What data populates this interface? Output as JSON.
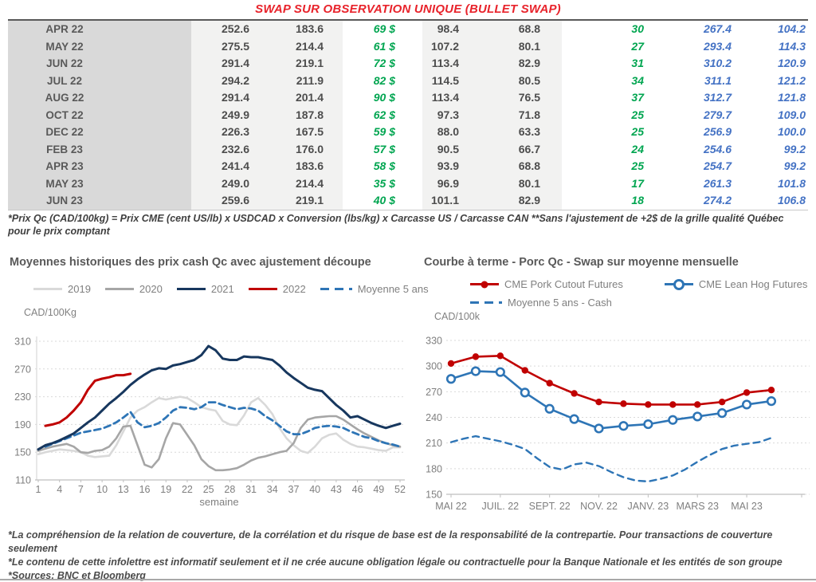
{
  "page": {
    "title": "SWAP SUR OBSERVATION UNIQUE (BULLET SWAP)"
  },
  "colors": {
    "title_red": "#e8232b",
    "green": "#00a550",
    "blue": "#4472c4",
    "navy": "#17375e",
    "dark_red": "#c00000",
    "steel_blue": "#2e75b6",
    "gray_2019": "#d9d9d9",
    "gray_2020": "#a6a6a6",
    "row_month_bg": "#d9d9d9",
    "row_value_bg": "#f2f2f1",
    "axis_text": "#7f7f7f",
    "gridline": "#d9d9d9",
    "axis_line": "#bfbfbf"
  },
  "table": {
    "rows": [
      [
        "APR 22",
        "252.6",
        "183.6",
        "69 $",
        "98.4",
        "68.8",
        "30",
        "267.4",
        "104.2"
      ],
      [
        "MAY 22",
        "275.5",
        "214.4",
        "61 $",
        "107.2",
        "80.1",
        "27",
        "293.4",
        "114.3"
      ],
      [
        "JUN 22",
        "291.4",
        "219.1",
        "72 $",
        "113.4",
        "82.9",
        "31",
        "310.2",
        "120.9"
      ],
      [
        "JUL 22",
        "294.2",
        "211.9",
        "82 $",
        "114.5",
        "80.5",
        "34",
        "311.1",
        "121.2"
      ],
      [
        "AUG 22",
        "291.4",
        "201.4",
        "90 $",
        "113.4",
        "76.5",
        "37",
        "312.7",
        "121.8"
      ],
      [
        "OCT 22",
        "249.9",
        "187.8",
        "62 $",
        "97.3",
        "71.8",
        "25",
        "279.7",
        "109.0"
      ],
      [
        "DEC 22",
        "226.3",
        "167.5",
        "59 $",
        "88.0",
        "63.3",
        "25",
        "256.9",
        "100.0"
      ],
      [
        "FEB 23",
        "232.6",
        "176.0",
        "57 $",
        "90.5",
        "66.7",
        "24",
        "254.6",
        "99.2"
      ],
      [
        "APR 23",
        "241.4",
        "183.6",
        "58 $",
        "93.9",
        "68.8",
        "25",
        "254.7",
        "99.2"
      ],
      [
        "MAY 23",
        "249.0",
        "214.4",
        "35 $",
        "96.9",
        "80.1",
        "17",
        "261.3",
        "101.8"
      ],
      [
        "JUN 23",
        "259.6",
        "219.1",
        "40 $",
        "101.1",
        "82.9",
        "18",
        "274.2",
        "106.8"
      ]
    ]
  },
  "notes": {
    "table_note": "*Prix Qc (CAD/100kg) = Prix CME (cent US/lb) x USDCAD x Conversion (lbs/kg) x Carcasse US / Carcasse CAN **Sans l'ajustement de +2$ de la grille qualité Québec pour le prix comptant",
    "footnotes": [
      "*La compréhension de la relation de couverture, de la corrélation et du risque de base est de la responsabilité de la contrepartie. Pour transactions de couverture seulement",
      "*Le contenu de cette infolettre est informatif seulement et il ne crée aucune obligation légale ou contractuelle pour la Banque Nationale et les entités de son groupe",
      "*Sources: BNC et Bloomberg"
    ]
  },
  "left_chart": {
    "title": "Moyennes historiques des prix cash Qc avec ajustement découpe",
    "axis_label": "CAD/100Kg",
    "legend": [
      "2019",
      "2020",
      "2021",
      "2022",
      "Moyenne 5 ans"
    ]
  },
  "right_chart": {
    "title": "Courbe à terme - Porc Qc - Swap sur moyenne mensuelle",
    "axis_label": "CAD/100k",
    "legend": [
      "CME Pork Cutout Futures",
      "CME Lean Hog Futures",
      "Moyenne 5 ans - Cash"
    ]
  },
  "chart_data": [
    {
      "type": "line",
      "title": "Moyennes historiques des prix cash Qc avec ajustement découpe",
      "xlabel": "semaine",
      "ylabel": "CAD/100Kg",
      "ylim": [
        110,
        310
      ],
      "y_ticks": [
        110,
        150,
        190,
        230,
        270,
        310
      ],
      "x_ticks": [
        1,
        4,
        7,
        10,
        13,
        16,
        19,
        22,
        25,
        28,
        31,
        34,
        37,
        40,
        43,
        46,
        49,
        52
      ],
      "grid": true,
      "legend_position": "top",
      "series": [
        {
          "name": "2019",
          "color": "#d9d9d9",
          "width": 2.6,
          "start_week": 1,
          "values": [
            147,
            150,
            152,
            154,
            153,
            152,
            150,
            145,
            143,
            144,
            145,
            160,
            180,
            200,
            210,
            215,
            222,
            228,
            226,
            228,
            230,
            228,
            222,
            215,
            212,
            210,
            195,
            190,
            189,
            203,
            222,
            228,
            218,
            205,
            185,
            170,
            160,
            152,
            149,
            158,
            170,
            175,
            177,
            168,
            162,
            158,
            157,
            155,
            153,
            152,
            157,
            157
          ]
        },
        {
          "name": "2020",
          "color": "#a6a6a6",
          "width": 2.6,
          "start_week": 1,
          "values": [
            152,
            155,
            158,
            160,
            162,
            158,
            150,
            149,
            152,
            153,
            158,
            170,
            187,
            188,
            160,
            132,
            128,
            140,
            170,
            192,
            190,
            175,
            160,
            140,
            130,
            124,
            124,
            125,
            127,
            132,
            138,
            142,
            144,
            147,
            150,
            152,
            163,
            185,
            197,
            200,
            201,
            202,
            202,
            197,
            190,
            183,
            177,
            172,
            167,
            163,
            160,
            158
          ]
        },
        {
          "name": "2021",
          "color": "#17375e",
          "width": 3,
          "start_week": 1,
          "values": [
            154,
            160,
            163,
            167,
            172,
            177,
            185,
            193,
            200,
            210,
            220,
            228,
            237,
            247,
            255,
            262,
            268,
            271,
            270,
            275,
            277,
            280,
            283,
            290,
            303,
            297,
            285,
            283,
            283,
            288,
            287,
            287,
            285,
            283,
            275,
            265,
            257,
            250,
            243,
            240,
            238,
            228,
            218,
            210,
            200,
            202,
            197,
            192,
            188,
            185,
            188,
            191
          ]
        },
        {
          "name": "2022",
          "color": "#c00000",
          "width": 3,
          "start_week": 2,
          "values": [
            188,
            190,
            193,
            200,
            210,
            222,
            240,
            253,
            256,
            258,
            261,
            261,
            263
          ]
        },
        {
          "name": "Moyenne 5 ans",
          "color": "#2e75b6",
          "width": 2.8,
          "dash": "8 5",
          "start_week": 2,
          "values": [
            158,
            162,
            166,
            170,
            174,
            178,
            180,
            182,
            184,
            188,
            193,
            200,
            208,
            193,
            186,
            188,
            192,
            200,
            210,
            215,
            214,
            212,
            215,
            222,
            222,
            218,
            215,
            212,
            214,
            213,
            210,
            202,
            196,
            188,
            180,
            176,
            176,
            180,
            185,
            187,
            188,
            187,
            185,
            180,
            176,
            172,
            170,
            166,
            163,
            161,
            158
          ]
        }
      ]
    },
    {
      "type": "line",
      "title": "Courbe à terme - Porc Qc - Swap sur moyenne mensuelle",
      "ylabel": "CAD/100k",
      "ylim": [
        150,
        330
      ],
      "y_ticks": [
        150,
        180,
        210,
        240,
        270,
        300,
        330
      ],
      "x_tick_labels": [
        "MAI 22",
        "JUIL. 22",
        "SEPT. 22",
        "NOV. 22",
        "JANV. 23",
        "MARS 23",
        "MAI 23"
      ],
      "x_tick_positions": [
        0,
        2,
        4,
        6,
        8,
        10,
        12
      ],
      "grid": true,
      "legend_position": "top",
      "series": [
        {
          "name": "CME Pork Cutout Futures",
          "color": "#c00000",
          "width": 2.6,
          "marker": "filled",
          "x_step": 1,
          "values": [
            303,
            311,
            312,
            295,
            280,
            268,
            258,
            256,
            255,
            255,
            255,
            258,
            269,
            272
          ]
        },
        {
          "name": "CME Lean Hog Futures",
          "color": "#2e75b6",
          "width": 2.6,
          "marker": "open",
          "x_step": 1,
          "values": [
            285,
            294,
            293,
            269,
            250,
            238,
            227,
            230,
            232,
            237,
            241,
            245,
            255,
            259
          ]
        },
        {
          "name": "Moyenne 5 ans - Cash",
          "color": "#2e75b6",
          "width": 2.4,
          "dash": "8 6",
          "x_step": 0.5,
          "values": [
            211,
            215,
            218,
            215,
            212,
            208,
            203,
            192,
            182,
            179,
            185,
            187,
            183,
            176,
            170,
            166,
            165,
            168,
            172,
            179,
            188,
            196,
            203,
            207,
            209,
            211,
            216
          ]
        }
      ]
    }
  ]
}
